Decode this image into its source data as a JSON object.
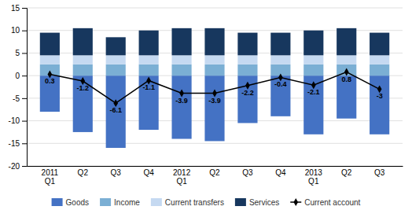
{
  "chart_data": {
    "type": "bar",
    "stacked": true,
    "grid": true,
    "legend": "bottom",
    "categories": [
      "2011\nQ1",
      "Q2",
      "Q3",
      "Q4",
      "2012\nQ1",
      "Q2",
      "Q3",
      "Q4",
      "2013\nQ1",
      "Q2",
      "Q3"
    ],
    "series": [
      {
        "name": "Goods",
        "color": "#4472C4",
        "values": [
          -8.0,
          -12.5,
          -16.0,
          -12.0,
          -14.0,
          -14.5,
          -10.5,
          -9.0,
          -13.0,
          -9.5,
          -13.0
        ]
      },
      {
        "name": "Income",
        "color": "#7BAFD4",
        "values": [
          2.5,
          2.5,
          2.5,
          2.5,
          2.5,
          2.5,
          2.5,
          2.5,
          2.5,
          2.5,
          2.5
        ]
      },
      {
        "name": "Current transfers",
        "color": "#C5D9F1",
        "values": [
          2.0,
          2.0,
          2.0,
          2.0,
          2.0,
          2.0,
          2.0,
          2.0,
          2.0,
          2.0,
          2.0
        ]
      },
      {
        "name": "Services",
        "color": "#17375E",
        "values": [
          5.0,
          6.0,
          4.0,
          5.5,
          6.0,
          6.0,
          5.0,
          5.0,
          5.5,
          6.0,
          5.0
        ]
      },
      {
        "name": "Current account",
        "type": "line",
        "color": "black",
        "marker": "diamond",
        "line_style": "solid",
        "data_labels": true,
        "values": [
          0.3,
          -1.2,
          -6.1,
          -1.1,
          -3.9,
          -3.9,
          -2.2,
          -0.4,
          -2.1,
          0.8,
          -3.0
        ]
      }
    ],
    "ylim": [
      -20,
      15
    ],
    "yticks": [
      -20,
      -15,
      -10,
      -5,
      0,
      5,
      10,
      15
    ]
  }
}
